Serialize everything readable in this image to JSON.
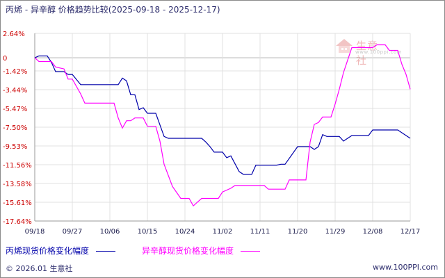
{
  "title": "丙烯 - 异辛醇 价格趋势比较(2025-09-18 - 2025-12-17)",
  "watermark": {
    "brand": "生意社",
    "url": "www.100ppi.com"
  },
  "colors": {
    "series1": "#0000aa",
    "series2": "#ff00ff",
    "ytick": "#cc0000",
    "grid": "#e0e0e0"
  },
  "chart_data": {
    "type": "line",
    "title": "丙烯 - 异辛醇 价格趋势比较(2025-09-18 - 2025-12-17)",
    "ylim": [
      -17.64,
      2.64
    ],
    "y_ticks": [
      2.64,
      0,
      -1.42,
      -3.44,
      -5.47,
      -7.5,
      -9.53,
      -11.56,
      -13.58,
      -15.61,
      -17.64
    ],
    "y_tick_labels": [
      "2.64%",
      "0",
      "-1.42%",
      "-3.44%",
      "-5.47%",
      "-7.50%",
      "-9.53%",
      "-11.56%",
      "-13.58%",
      "-15.61%",
      "-17.64%"
    ],
    "x_tick_labels": [
      "09/18",
      "09/27",
      "10/06",
      "10/15",
      "10/24",
      "11/02",
      "11/11",
      "11/20",
      "11/29",
      "12/08",
      "12/17"
    ],
    "x_tick_days": [
      0,
      9,
      18,
      27,
      36,
      45,
      54,
      63,
      72,
      81,
      90
    ],
    "xlim": [
      0,
      90
    ],
    "grid": true,
    "legend_position": "bottom",
    "series": [
      {
        "name": "丙烯现货价格变化幅度",
        "points": [
          [
            0,
            0
          ],
          [
            1,
            0.2
          ],
          [
            3,
            0.2
          ],
          [
            4,
            -0.5
          ],
          [
            5,
            -1.5
          ],
          [
            7,
            -1.5
          ],
          [
            8,
            -1.8
          ],
          [
            9,
            -1.8
          ],
          [
            11,
            -2.9
          ],
          [
            20,
            -2.9
          ],
          [
            21,
            -2.2
          ],
          [
            22,
            -2.5
          ],
          [
            23,
            -4
          ],
          [
            24,
            -4
          ],
          [
            25,
            -5.6
          ],
          [
            26,
            -5.4
          ],
          [
            27,
            -6
          ],
          [
            29,
            -6
          ],
          [
            31,
            -8.5
          ],
          [
            32,
            -8.7
          ],
          [
            40,
            -8.7
          ],
          [
            41,
            -9.1
          ],
          [
            42,
            -9.6
          ],
          [
            43,
            -10.2
          ],
          [
            45,
            -10.2
          ],
          [
            46,
            -10.8
          ],
          [
            47,
            -10.6
          ],
          [
            49,
            -12.3
          ],
          [
            50,
            -12.6
          ],
          [
            52,
            -12.6
          ],
          [
            53,
            -11.6
          ],
          [
            58,
            -11.6
          ],
          [
            59,
            -11.5
          ],
          [
            60,
            -11.5
          ],
          [
            63,
            -9.6
          ],
          [
            66,
            -9.6
          ],
          [
            67,
            -9.9
          ],
          [
            68,
            -9.6
          ],
          [
            69,
            -8.3
          ],
          [
            70,
            -8.5
          ],
          [
            73,
            -8.5
          ],
          [
            74,
            -9
          ],
          [
            75,
            -8.7
          ],
          [
            76,
            -8.4
          ],
          [
            80,
            -8.4
          ],
          [
            81,
            -7.8
          ],
          [
            87,
            -7.8
          ],
          [
            88,
            -8.1
          ],
          [
            90,
            -8.7
          ]
        ]
      },
      {
        "name": "异辛醇现货价格变化幅度",
        "points": [
          [
            0,
            0
          ],
          [
            1,
            -0.4
          ],
          [
            4,
            -0.4
          ],
          [
            5,
            -1
          ],
          [
            7,
            -1.2
          ],
          [
            8,
            -2.3
          ],
          [
            9,
            -2.3
          ],
          [
            11,
            -3.9
          ],
          [
            12,
            -4.9
          ],
          [
            19,
            -4.9
          ],
          [
            20,
            -6.5
          ],
          [
            21,
            -7.6
          ],
          [
            22,
            -6.8
          ],
          [
            23,
            -6.8
          ],
          [
            24,
            -6.5
          ],
          [
            26,
            -6.5
          ],
          [
            27,
            -7.4
          ],
          [
            29,
            -7.4
          ],
          [
            30,
            -9
          ],
          [
            31,
            -11.5
          ],
          [
            33,
            -13.9
          ],
          [
            35,
            -15.2
          ],
          [
            37,
            -15.2
          ],
          [
            38,
            -16
          ],
          [
            39,
            -15.6
          ],
          [
            40,
            -15.2
          ],
          [
            44,
            -15.2
          ],
          [
            45,
            -14.5
          ],
          [
            47,
            -14.1
          ],
          [
            48,
            -13.8
          ],
          [
            55,
            -13.8
          ],
          [
            56,
            -14.2
          ],
          [
            60,
            -14.2
          ],
          [
            61,
            -13.2
          ],
          [
            65,
            -13.2
          ],
          [
            66,
            -9.1
          ],
          [
            67,
            -7.2
          ],
          [
            68,
            -7
          ],
          [
            69,
            -6.4
          ],
          [
            71,
            -6.4
          ],
          [
            72,
            -5
          ],
          [
            73,
            -3.4
          ],
          [
            74,
            -1.6
          ],
          [
            76,
            1.1
          ],
          [
            81,
            1.1
          ],
          [
            82,
            1.4
          ],
          [
            84,
            1.4
          ],
          [
            85,
            0.8
          ],
          [
            87,
            0.8
          ],
          [
            88,
            -0.7
          ],
          [
            89,
            -1.8
          ],
          [
            90,
            -3.4
          ]
        ]
      }
    ]
  },
  "footer": {
    "copyright": "© 2026.01 生意社",
    "url": "www.100PPI.com"
  }
}
